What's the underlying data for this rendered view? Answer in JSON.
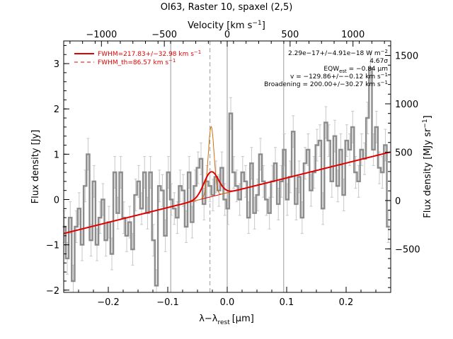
{
  "chart_data": {
    "type": "line",
    "title": "OI63, Raster 10, spaxel (2,5)",
    "xlabel": "λ−λ",
    "xlabel_sub": "rest",
    "xlabel_unit": "[μm]",
    "ylabel": "Flux density [Jy]",
    "ylabel_right": "Flux density [MJy sr",
    "ylabel_right_sup": "−1",
    "ylabel_right_end": "]",
    "xlabel_top": "Velocity [km s",
    "xlabel_top_sup": "−1",
    "xlabel_top_end": "]",
    "xlim": [
      -0.275,
      0.275
    ],
    "ylim": [
      -2.05,
      3.5
    ],
    "velocity_lim": [
      -1300,
      1300
    ],
    "right_lim": [
      -950,
      1650
    ],
    "x_ticks": [
      -0.2,
      -0.1,
      0.0,
      0.1,
      0.2
    ],
    "x_tick_labels": [
      "−0.2",
      "−0.1",
      "0.0",
      "0.1",
      "0.2"
    ],
    "y_ticks": [
      -2,
      -1,
      0,
      1,
      2,
      3
    ],
    "y_tick_labels": [
      "−2",
      "−1",
      "0",
      "1",
      "2",
      "3"
    ],
    "top_ticks": [
      -1000,
      -500,
      0,
      500,
      1000
    ],
    "top_tick_labels": [
      "−1000",
      "−500",
      "0",
      "500",
      "1000"
    ],
    "right_ticks": [
      -500,
      0,
      500,
      1000,
      1500
    ],
    "right_tick_labels": [
      "−500",
      "0",
      "500",
      "1000",
      "1500"
    ],
    "vertical_lines": [
      -0.095,
      0.0,
      0.095
    ],
    "dashed_line": -0.029,
    "legend": [
      {
        "label": "FWHM=217.83+/−32.98 km s",
        "sup": "−1",
        "style": "solid"
      },
      {
        "label": "FWHM_th=86.57 km s",
        "sup": "−1",
        "style": "dashed"
      }
    ],
    "annotations": [
      {
        "text": "2.29e−17+/−4.91e−18 W m",
        "sup": "−2"
      },
      {
        "text": "4.67σ"
      },
      {
        "text": "EQW",
        "sub": "est",
        "text2": " = −0.84 μm"
      },
      {
        "text": "v = −129.86+/−−0.12 km s",
        "sup": "−1"
      },
      {
        "text": "Broadening = 200.00+/−30.27 km s",
        "sup": "−1"
      }
    ],
    "baseline": {
      "x": [
        -0.275,
        0.275
      ],
      "y": [
        -0.75,
        1.05
      ]
    },
    "gaussian": {
      "center": -0.027,
      "sigma": 0.0123,
      "amplitude": 0.55
    },
    "gaussian_th": {
      "center": -0.027,
      "sigma": 0.0049,
      "amplitude": 1.55
    },
    "series": [
      {
        "style": "histogram",
        "x": [
          -0.274,
          -0.269,
          -0.264,
          -0.259,
          -0.254,
          -0.249,
          -0.244,
          -0.239,
          -0.234,
          -0.229,
          -0.224,
          -0.219,
          -0.214,
          -0.209,
          -0.204,
          -0.199,
          -0.194,
          -0.189,
          -0.184,
          -0.179,
          -0.174,
          -0.169,
          -0.164,
          -0.159,
          -0.154,
          -0.149,
          -0.144,
          -0.139,
          -0.134,
          -0.129,
          -0.124,
          -0.119,
          -0.114,
          -0.109,
          -0.104,
          -0.099,
          -0.094,
          -0.089,
          -0.084,
          -0.079,
          -0.074,
          -0.069,
          -0.064,
          -0.059,
          -0.054,
          -0.049,
          -0.044,
          -0.039,
          -0.034,
          -0.029,
          -0.024,
          -0.019,
          -0.014,
          -0.009,
          -0.004,
          0.001,
          0.006,
          0.011,
          0.016,
          0.021,
          0.026,
          0.031,
          0.036,
          0.041,
          0.046,
          0.051,
          0.056,
          0.061,
          0.066,
          0.071,
          0.076,
          0.081,
          0.086,
          0.091,
          0.096,
          0.101,
          0.106,
          0.111,
          0.116,
          0.121,
          0.126,
          0.131,
          0.136,
          0.141,
          0.146,
          0.151,
          0.156,
          0.161,
          0.166,
          0.171,
          0.176,
          0.181,
          0.186,
          0.191,
          0.196,
          0.201,
          0.206,
          0.211,
          0.216,
          0.221,
          0.226,
          0.231,
          0.236,
          0.241,
          0.246,
          0.251,
          0.256,
          0.261,
          0.266,
          0.271
        ],
        "y": [
          -0.6,
          -1.3,
          -0.4,
          -1.8,
          -0.6,
          -0.2,
          -1.0,
          0.3,
          1.0,
          -0.9,
          0.4,
          -1.0,
          -0.4,
          0.0,
          -0.9,
          -0.5,
          -1.2,
          0.6,
          -0.3,
          0.6,
          -0.4,
          -0.8,
          -0.5,
          -1.1,
          0.1,
          0.4,
          -0.2,
          0.6,
          -0.3,
          0.6,
          -0.9,
          -1.9,
          0.3,
          0.2,
          -0.8,
          0.6,
          0.0,
          -0.2,
          -0.4,
          0.3,
          0.2,
          -0.6,
          0.6,
          -0.5,
          0.3,
          0.7,
          0.9,
          -0.1,
          0.4,
          0.3,
          0.1,
          0.5,
          0.2,
          0.7,
          0.0,
          -0.2,
          1.9,
          0.6,
          0.3,
          0.0,
          0.6,
          0.4,
          -0.4,
          0.8,
          -0.3,
          0.1,
          1.0,
          0.4,
          0.0,
          -0.3,
          0.4,
          0.8,
          -0.1,
          0.4,
          1.1,
          0.0,
          0.5,
          1.5,
          -0.1,
          0.5,
          -0.4,
          0.8,
          1.1,
          0.2,
          0.6,
          1.2,
          1.3,
          -0.2,
          1.7,
          1.3,
          0.4,
          1.4,
          0.3,
          1.1,
          0.1,
          1.3,
          1.1,
          1.6,
          0.6,
          0.4,
          1.1,
          0.9,
          1.8,
          2.9,
          1.1,
          1.6,
          0.7,
          0.6,
          1.2,
          -0.6
        ],
        "error": 0.35
      }
    ],
    "colors": {
      "data": "#8c8c8c",
      "fit": "#e00000",
      "component": "#d07010",
      "guides": "#9a9a9a"
    }
  }
}
